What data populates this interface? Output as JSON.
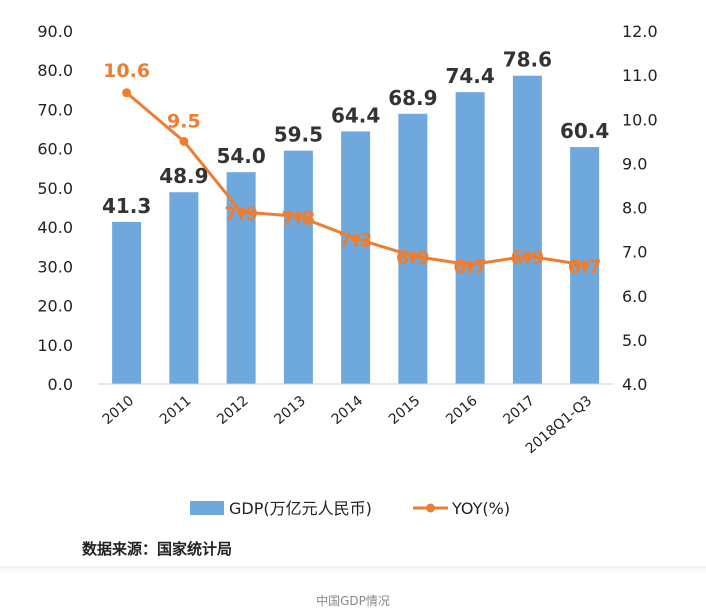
{
  "chart_data": {
    "type": "bar+line",
    "categories": [
      "2010",
      "2011",
      "2012",
      "2013",
      "2014",
      "2015",
      "2016",
      "2017",
      "2018Q1-Q3"
    ],
    "series": [
      {
        "name": "GDP(万亿元人民币)",
        "type": "bar",
        "axis": "left",
        "values": [
          41.3,
          48.9,
          54.0,
          59.5,
          64.4,
          68.9,
          74.4,
          78.6,
          60.4
        ],
        "labels": [
          "41.3",
          "48.9",
          "54.0",
          "59.5",
          "64.4",
          "68.9",
          "74.4",
          "78.6",
          "60.4"
        ],
        "color": "#6fa8dc"
      },
      {
        "name": "YOY(%)",
        "type": "line",
        "axis": "right",
        "values": [
          10.6,
          9.5,
          7.9,
          7.8,
          7.3,
          6.9,
          6.7,
          6.9,
          6.7
        ],
        "labels": [
          "10.6",
          "9.5",
          "7.9",
          "7.8",
          "7.3",
          "6.9",
          "6.7",
          "6.9",
          "6.7"
        ],
        "color": "#ed7d31"
      }
    ],
    "y_left": {
      "range": [
        0,
        90
      ],
      "ticks": [
        "0.0",
        "10.0",
        "20.0",
        "30.0",
        "40.0",
        "50.0",
        "60.0",
        "70.0",
        "80.0",
        "90.0"
      ]
    },
    "y_right": {
      "range": [
        4,
        12
      ],
      "ticks": [
        "4.0",
        "5.0",
        "6.0",
        "7.0",
        "8.0",
        "9.0",
        "10.0",
        "11.0",
        "12.0"
      ]
    },
    "grid": false,
    "legend_position": "bottom",
    "source_note": "数据来源：国家统计局",
    "caption": "中国GDP情况",
    "label_colors": {
      "bar_label": "#333333",
      "line_label": "#ed7d31",
      "axis": "#222222"
    }
  }
}
